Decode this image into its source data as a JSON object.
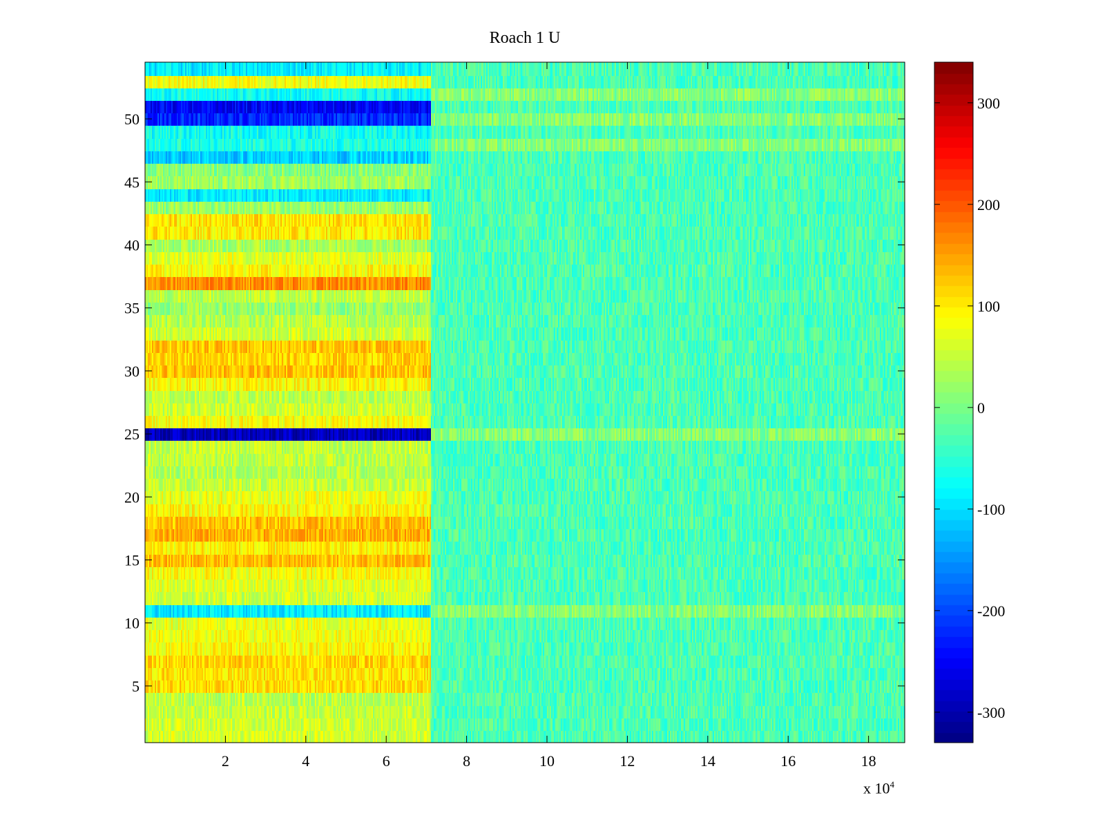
{
  "chart_data": {
    "type": "heatmap",
    "title": "Roach 1 U",
    "xlabel": "",
    "ylabel": "",
    "x_range": [
      0,
      189000
    ],
    "y_range": [
      0.5,
      54.5
    ],
    "x_ticks": [
      20000,
      40000,
      60000,
      80000,
      100000,
      120000,
      140000,
      160000,
      180000
    ],
    "x_tick_labels": [
      "2",
      "4",
      "6",
      "8",
      "10",
      "12",
      "14",
      "16",
      "18"
    ],
    "x_multiplier_text": "x 10",
    "x_multiplier_exponent": "4",
    "y_ticks": [
      5,
      10,
      15,
      20,
      25,
      30,
      35,
      40,
      45,
      50
    ],
    "y_tick_labels": [
      "5",
      "10",
      "15",
      "20",
      "25",
      "30",
      "35",
      "40",
      "45",
      "50"
    ],
    "colormap": "jet",
    "clim": [
      -330,
      340
    ],
    "colorbar_ticks": [
      -300,
      -200,
      -100,
      0,
      100,
      200,
      300
    ],
    "colorbar_tick_labels": [
      "-300",
      "-200",
      "-100",
      "0",
      "100",
      "200",
      "300"
    ],
    "transition_x": 71000,
    "later_level": -30,
    "later_level_rows": [
      {
        "rows": [
          11,
          25,
          48,
          50,
          52
        ],
        "value": 10
      }
    ],
    "row_levels_before_transition": [
      {
        "row": 1,
        "value": 60
      },
      {
        "row": 2,
        "value": 55
      },
      {
        "row": 3,
        "value": 50
      },
      {
        "row": 4,
        "value": 45
      },
      {
        "row": 5,
        "value": 110
      },
      {
        "row": 6,
        "value": 105
      },
      {
        "row": 7,
        "value": 115
      },
      {
        "row": 8,
        "value": 90
      },
      {
        "row": 9,
        "value": 80
      },
      {
        "row": 10,
        "value": 75
      },
      {
        "row": 11,
        "value": -90
      },
      {
        "row": 12,
        "value": 55
      },
      {
        "row": 13,
        "value": 70
      },
      {
        "row": 14,
        "value": 85
      },
      {
        "row": 15,
        "value": 130
      },
      {
        "row": 16,
        "value": 95
      },
      {
        "row": 17,
        "value": 140
      },
      {
        "row": 18,
        "value": 130
      },
      {
        "row": 19,
        "value": 90
      },
      {
        "row": 20,
        "value": 75
      },
      {
        "row": 21,
        "value": 50
      },
      {
        "row": 22,
        "value": 40
      },
      {
        "row": 23,
        "value": 45
      },
      {
        "row": 24,
        "value": 50
      },
      {
        "row": 25,
        "value": -290
      },
      {
        "row": 26,
        "value": 85
      },
      {
        "row": 27,
        "value": 55
      },
      {
        "row": 28,
        "value": 45
      },
      {
        "row": 29,
        "value": 90
      },
      {
        "row": 30,
        "value": 130
      },
      {
        "row": 31,
        "value": 115
      },
      {
        "row": 32,
        "value": 125
      },
      {
        "row": 33,
        "value": 60
      },
      {
        "row": 34,
        "value": 40
      },
      {
        "row": 35,
        "value": 20
      },
      {
        "row": 36,
        "value": 45
      },
      {
        "row": 37,
        "value": 160
      },
      {
        "row": 38,
        "value": 90
      },
      {
        "row": 39,
        "value": 70
      },
      {
        "row": 40,
        "value": 30
      },
      {
        "row": 41,
        "value": 100
      },
      {
        "row": 42,
        "value": 105
      },
      {
        "row": 43,
        "value": 20
      },
      {
        "row": 44,
        "value": -90
      },
      {
        "row": 45,
        "value": 25
      },
      {
        "row": 46,
        "value": 10
      },
      {
        "row": 47,
        "value": -110
      },
      {
        "row": 48,
        "value": -60
      },
      {
        "row": 49,
        "value": -70
      },
      {
        "row": 50,
        "value": -220
      },
      {
        "row": 51,
        "value": -250
      },
      {
        "row": 52,
        "value": -70
      },
      {
        "row": 53,
        "value": 80
      },
      {
        "row": 54,
        "value": -90
      }
    ]
  }
}
